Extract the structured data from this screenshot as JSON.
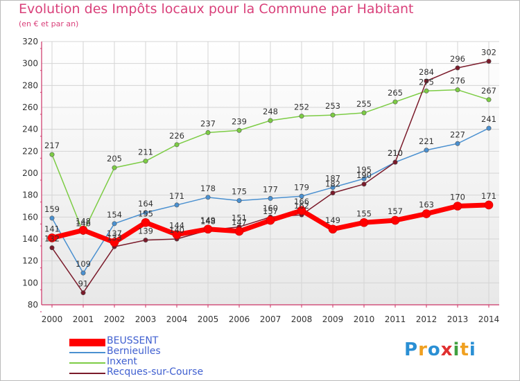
{
  "header": {
    "title": "Evolution des Impôts locaux pour la Commune par Habitant",
    "subtitle": "(en € et par an)"
  },
  "colors": {
    "title": "#d9407a",
    "axis": "#cc3366",
    "grid": "#d0d0d0",
    "plot_bg_top": "#ffffff",
    "plot_bg_bottom": "#e6e6e6",
    "legend_text": "#4060d0"
  },
  "logo": {
    "letters": [
      "P",
      "r",
      "o",
      "x",
      "i",
      "t",
      "i"
    ],
    "colors": [
      "#2a8fd4",
      "#f0a020",
      "#2a8fd4",
      "#e03030",
      "#40a040",
      "#f0a020",
      "#2a8fd4"
    ]
  },
  "chart_data": {
    "type": "line",
    "title": "Evolution des Impôts locaux pour la Commune par Habitant",
    "subtitle": "(en € et par an)",
    "x": [
      2000,
      2001,
      2002,
      2003,
      2004,
      2005,
      2006,
      2007,
      2008,
      2009,
      2010,
      2011,
      2012,
      2013,
      2014
    ],
    "ylim": [
      80,
      320
    ],
    "yticks": [
      80,
      100,
      120,
      140,
      160,
      180,
      200,
      220,
      240,
      260,
      280,
      300,
      320
    ],
    "grid": true,
    "legend_position": "bottom-left",
    "series": [
      {
        "name": "Inxent",
        "color": "#7ccc44",
        "width": 1.5,
        "values": [
          217,
          146,
          205,
          211,
          226,
          237,
          239,
          248,
          252,
          253,
          255,
          265,
          275,
          276,
          267
        ]
      },
      {
        "name": "Bernieulles",
        "color": "#4a90d0",
        "width": 1.5,
        "values": [
          159,
          109,
          154,
          164,
          171,
          178,
          175,
          177,
          179,
          187,
          195,
          210,
          221,
          227,
          241
        ]
      },
      {
        "name": "Recques-sur-Course",
        "color": "#7a1a2a",
        "width": 1.5,
        "values": [
          132,
          91,
          133,
          139,
          140,
          148,
          151,
          160,
          162,
          182,
          190,
          210,
          284,
          296,
          302
        ]
      },
      {
        "name": "BEUSSENT",
        "color": "#ff0000",
        "width": 7,
        "values": [
          141,
          148,
          137,
          155,
          144,
          149,
          147,
          157,
          166,
          149,
          155,
          157,
          163,
          170,
          171
        ]
      }
    ],
    "legend_order": [
      "BEUSSENT",
      "Bernieulles",
      "Inxent",
      "Recques-sur-Course"
    ]
  }
}
